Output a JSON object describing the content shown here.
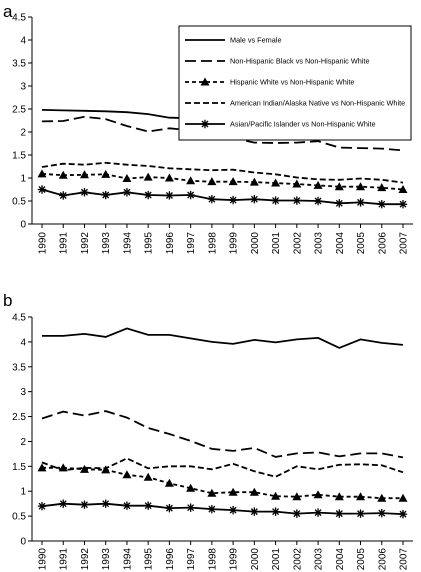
{
  "chart_data": [
    {
      "type": "line",
      "panel_label": "a",
      "categories": [
        "1990",
        "1991",
        "1992",
        "1993",
        "1994",
        "1995",
        "1996",
        "1997",
        "1998",
        "1999",
        "2000",
        "2001",
        "2002",
        "2003",
        "2004",
        "2005",
        "2006",
        "2007"
      ],
      "ylim": [
        0,
        4.5
      ],
      "yticks": [
        "0",
        "0.5",
        "1",
        "1.5",
        "2",
        "2.5",
        "3",
        "3.5",
        "4",
        "4.5"
      ],
      "grid": false,
      "legend_position": "top-right",
      "series": [
        {
          "name": "Male vs Female",
          "style": "solid",
          "marker": "none",
          "values": [
            2.48,
            2.47,
            2.46,
            2.45,
            2.43,
            2.39,
            2.31,
            2.3,
            2.27,
            2.25,
            2.27,
            2.24,
            2.21,
            2.18,
            2.15,
            2.19,
            2.19,
            2.16
          ]
        },
        {
          "name": "Non-Hispanic Black vs Non-Hispanic White",
          "style": "longdash",
          "marker": "none",
          "values": [
            2.23,
            2.24,
            2.33,
            2.28,
            2.13,
            2.01,
            2.08,
            2.04,
            1.92,
            1.87,
            1.77,
            1.76,
            1.77,
            1.8,
            1.66,
            1.65,
            1.64,
            1.6
          ]
        },
        {
          "name": "Hispanic White vs Non-Hispanic White",
          "style": "shortdash",
          "marker": "triangle",
          "values": [
            1.09,
            1.06,
            1.07,
            1.08,
            0.99,
            1.02,
            1.0,
            0.94,
            0.92,
            0.92,
            0.91,
            0.89,
            0.87,
            0.84,
            0.81,
            0.81,
            0.79,
            0.75
          ]
        },
        {
          "name": "American Indian/Alaska Native vs Non-Hispanic White",
          "style": "dash",
          "marker": "none",
          "values": [
            1.24,
            1.31,
            1.29,
            1.33,
            1.29,
            1.26,
            1.21,
            1.19,
            1.17,
            1.18,
            1.12,
            1.08,
            1.01,
            0.97,
            0.96,
            0.99,
            0.96,
            0.9
          ]
        },
        {
          "name": "Asian/Pacific Islander vs Non-Hispanic White",
          "style": "solid",
          "marker": "asterisk",
          "values": [
            0.75,
            0.62,
            0.69,
            0.63,
            0.69,
            0.63,
            0.62,
            0.63,
            0.54,
            0.52,
            0.54,
            0.51,
            0.51,
            0.5,
            0.45,
            0.47,
            0.43,
            0.43
          ]
        }
      ]
    },
    {
      "type": "line",
      "panel_label": "b",
      "categories": [
        "1990",
        "1991",
        "1992",
        "1993",
        "1994",
        "1995",
        "1996",
        "1997",
        "1998",
        "1999",
        "2000",
        "2001",
        "2002",
        "2003",
        "2004",
        "2005",
        "2006",
        "2007"
      ],
      "ylim": [
        0,
        4.5
      ],
      "yticks": [
        "0",
        "0.5",
        "1",
        "1.5",
        "2",
        "2.5",
        "3",
        "3.5",
        "4",
        "4.5"
      ],
      "grid": false,
      "series": [
        {
          "name": "Male vs Female",
          "style": "solid",
          "marker": "none",
          "values": [
            4.12,
            4.12,
            4.16,
            4.1,
            4.27,
            4.14,
            4.14,
            4.07,
            4.0,
            3.96,
            4.04,
            3.99,
            4.05,
            4.08,
            3.88,
            4.05,
            3.98,
            3.94
          ]
        },
        {
          "name": "Non-Hispanic Black vs Non-Hispanic White",
          "style": "longdash",
          "marker": "none",
          "values": [
            2.46,
            2.6,
            2.52,
            2.61,
            2.48,
            2.27,
            2.15,
            2.01,
            1.85,
            1.81,
            1.87,
            1.69,
            1.76,
            1.78,
            1.7,
            1.76,
            1.76,
            1.68
          ]
        },
        {
          "name": "Hispanic White vs Non-Hispanic White",
          "style": "shortdash",
          "marker": "triangle",
          "values": [
            1.47,
            1.47,
            1.44,
            1.43,
            1.33,
            1.28,
            1.16,
            1.06,
            0.96,
            0.98,
            0.98,
            0.9,
            0.89,
            0.93,
            0.89,
            0.89,
            0.86,
            0.86
          ]
        },
        {
          "name": "American Indian/Alaska Native vs Non-Hispanic White",
          "style": "dash",
          "marker": "none",
          "values": [
            1.58,
            1.42,
            1.47,
            1.46,
            1.66,
            1.46,
            1.5,
            1.5,
            1.44,
            1.55,
            1.4,
            1.29,
            1.5,
            1.44,
            1.53,
            1.54,
            1.52,
            1.38
          ]
        },
        {
          "name": "Asian/Pacific Islander vs Non-Hispanic White",
          "style": "solid",
          "marker": "asterisk",
          "values": [
            0.7,
            0.75,
            0.73,
            0.75,
            0.71,
            0.71,
            0.66,
            0.67,
            0.64,
            0.62,
            0.59,
            0.59,
            0.55,
            0.57,
            0.55,
            0.55,
            0.56,
            0.54
          ]
        }
      ]
    }
  ]
}
